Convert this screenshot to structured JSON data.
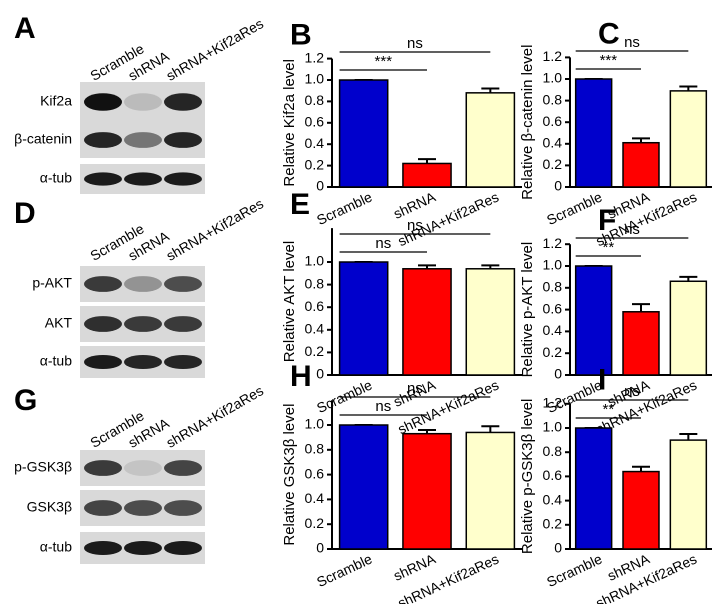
{
  "blots": [
    {
      "panel": "A",
      "lanes": [
        "Scramble",
        "shRNA",
        "shRNA+Kif2aRes"
      ],
      "rows": [
        "Kif2a",
        "β-catenin",
        "α-tub"
      ]
    },
    {
      "panel": "D",
      "lanes": [
        "Scramble",
        "shRNA",
        "shRNA+Kif2aRes"
      ],
      "rows": [
        "p-AKT",
        "AKT",
        "α-tub"
      ]
    },
    {
      "panel": "G",
      "lanes": [
        "Scramble",
        "shRNA",
        "shRNA+Kif2aRes"
      ],
      "rows": [
        "p-GSK3β",
        "GSK3β",
        "α-tub"
      ]
    }
  ],
  "chart_data": [
    {
      "type": "bar",
      "panel": "B",
      "ylabel": "Relative Kif2a level",
      "categories": [
        "Scramble",
        "shRNA",
        "shRNA+Kif2aRes"
      ],
      "values": [
        1.0,
        0.22,
        0.88
      ],
      "errors": [
        0,
        0.04,
        0.04
      ],
      "colors": [
        "#0000cc",
        "#ff0000",
        "#ffffcc"
      ],
      "ylim": [
        0,
        1.2
      ],
      "yticks": [
        0,
        0.2,
        0.4,
        0.6,
        0.8,
        {
          "value": 1,
          "label": "1.0"
        },
        1.2
      ],
      "annotations": [
        {
          "text": "***",
          "from": 0,
          "to": 1
        },
        {
          "text": "ns",
          "from": 0,
          "to": 2
        }
      ]
    },
    {
      "type": "bar",
      "panel": "C",
      "ylabel": "Relative β-catenin level",
      "categories": [
        "Scramble",
        "shRNA",
        "shRNA+Kif2aRes"
      ],
      "values": [
        1.0,
        0.41,
        0.89
      ],
      "errors": [
        0,
        0.04,
        0.04
      ],
      "colors": [
        "#0000cc",
        "#ff0000",
        "#ffffcc"
      ],
      "ylim": [
        0,
        1.2
      ],
      "yticks": [
        0,
        0.2,
        0.4,
        0.6,
        0.8,
        {
          "value": 1,
          "label": "1.0"
        },
        1.2
      ],
      "annotations": [
        {
          "text": "***",
          "from": 0,
          "to": 1
        },
        {
          "text": "ns",
          "from": 0,
          "to": 2
        }
      ]
    },
    {
      "type": "bar",
      "panel": "E",
      "ylabel": "Relative AKT level",
      "categories": [
        "Scramble",
        "shRNA",
        "shRNA+Kif2aRes"
      ],
      "values": [
        1.0,
        0.94,
        0.94
      ],
      "errors": [
        0,
        0.03,
        0.03
      ],
      "colors": [
        "#0000cc",
        "#ff0000",
        "#ffffcc"
      ],
      "ylim": [
        0,
        1.3
      ],
      "yticks": [
        0,
        0.2,
        0.4,
        0.6,
        0.8,
        {
          "value": 1,
          "label": "1.0"
        }
      ],
      "annotations": [
        {
          "text": "ns",
          "from": 0,
          "to": 1
        },
        {
          "text": "ns",
          "from": 0,
          "to": 2
        }
      ]
    },
    {
      "type": "bar",
      "panel": "F",
      "ylabel": "Relative p-AKT level",
      "categories": [
        "Scramble",
        "shRNA",
        "shRNA+Kif2aRes"
      ],
      "values": [
        1.0,
        0.58,
        0.86
      ],
      "errors": [
        0,
        0.07,
        0.04
      ],
      "colors": [
        "#0000cc",
        "#ff0000",
        "#ffffcc"
      ],
      "ylim": [
        0,
        1.2
      ],
      "yticks": [
        0,
        0.2,
        0.4,
        0.6,
        0.8,
        {
          "value": 1,
          "label": "1.0"
        },
        1.2
      ],
      "annotations": [
        {
          "text": "**",
          "from": 0,
          "to": 1
        },
        {
          "text": "ns",
          "from": 0,
          "to": 2
        }
      ]
    },
    {
      "type": "bar",
      "panel": "H",
      "ylabel": "Relative GSK3β level",
      "categories": [
        "Scramble",
        "shRNA",
        "shRNA+Kif2aRes"
      ],
      "values": [
        1.0,
        0.93,
        0.94
      ],
      "errors": [
        0,
        0.03,
        0.05
      ],
      "colors": [
        "#0000cc",
        "#ff0000",
        "#ffffcc"
      ],
      "ylim": [
        0,
        1.2
      ],
      "yticks": [
        0,
        0.2,
        0.4,
        0.6,
        0.8,
        {
          "value": 1,
          "label": "1.0"
        }
      ],
      "annotations": [
        {
          "text": "ns",
          "from": 0,
          "to": 1
        },
        {
          "text": "ns",
          "from": 0,
          "to": 2
        }
      ]
    },
    {
      "type": "bar",
      "panel": "I",
      "ylabel": "Relative p-GSK3β level",
      "categories": [
        "Scramble",
        "shRNA",
        "shRNA+Kif2aRes"
      ],
      "values": [
        1.0,
        0.64,
        0.9
      ],
      "errors": [
        0,
        0.04,
        0.05
      ],
      "colors": [
        "#0000cc",
        "#ff0000",
        "#ffffcc"
      ],
      "ylim": [
        0,
        1.2
      ],
      "yticks": [
        0,
        0.2,
        0.4,
        0.6,
        0.8,
        {
          "value": 1,
          "label": "1.0"
        },
        1.2
      ],
      "annotations": [
        {
          "text": "**",
          "from": 0,
          "to": 1
        },
        {
          "text": "ns",
          "from": 0,
          "to": 2
        }
      ]
    }
  ]
}
